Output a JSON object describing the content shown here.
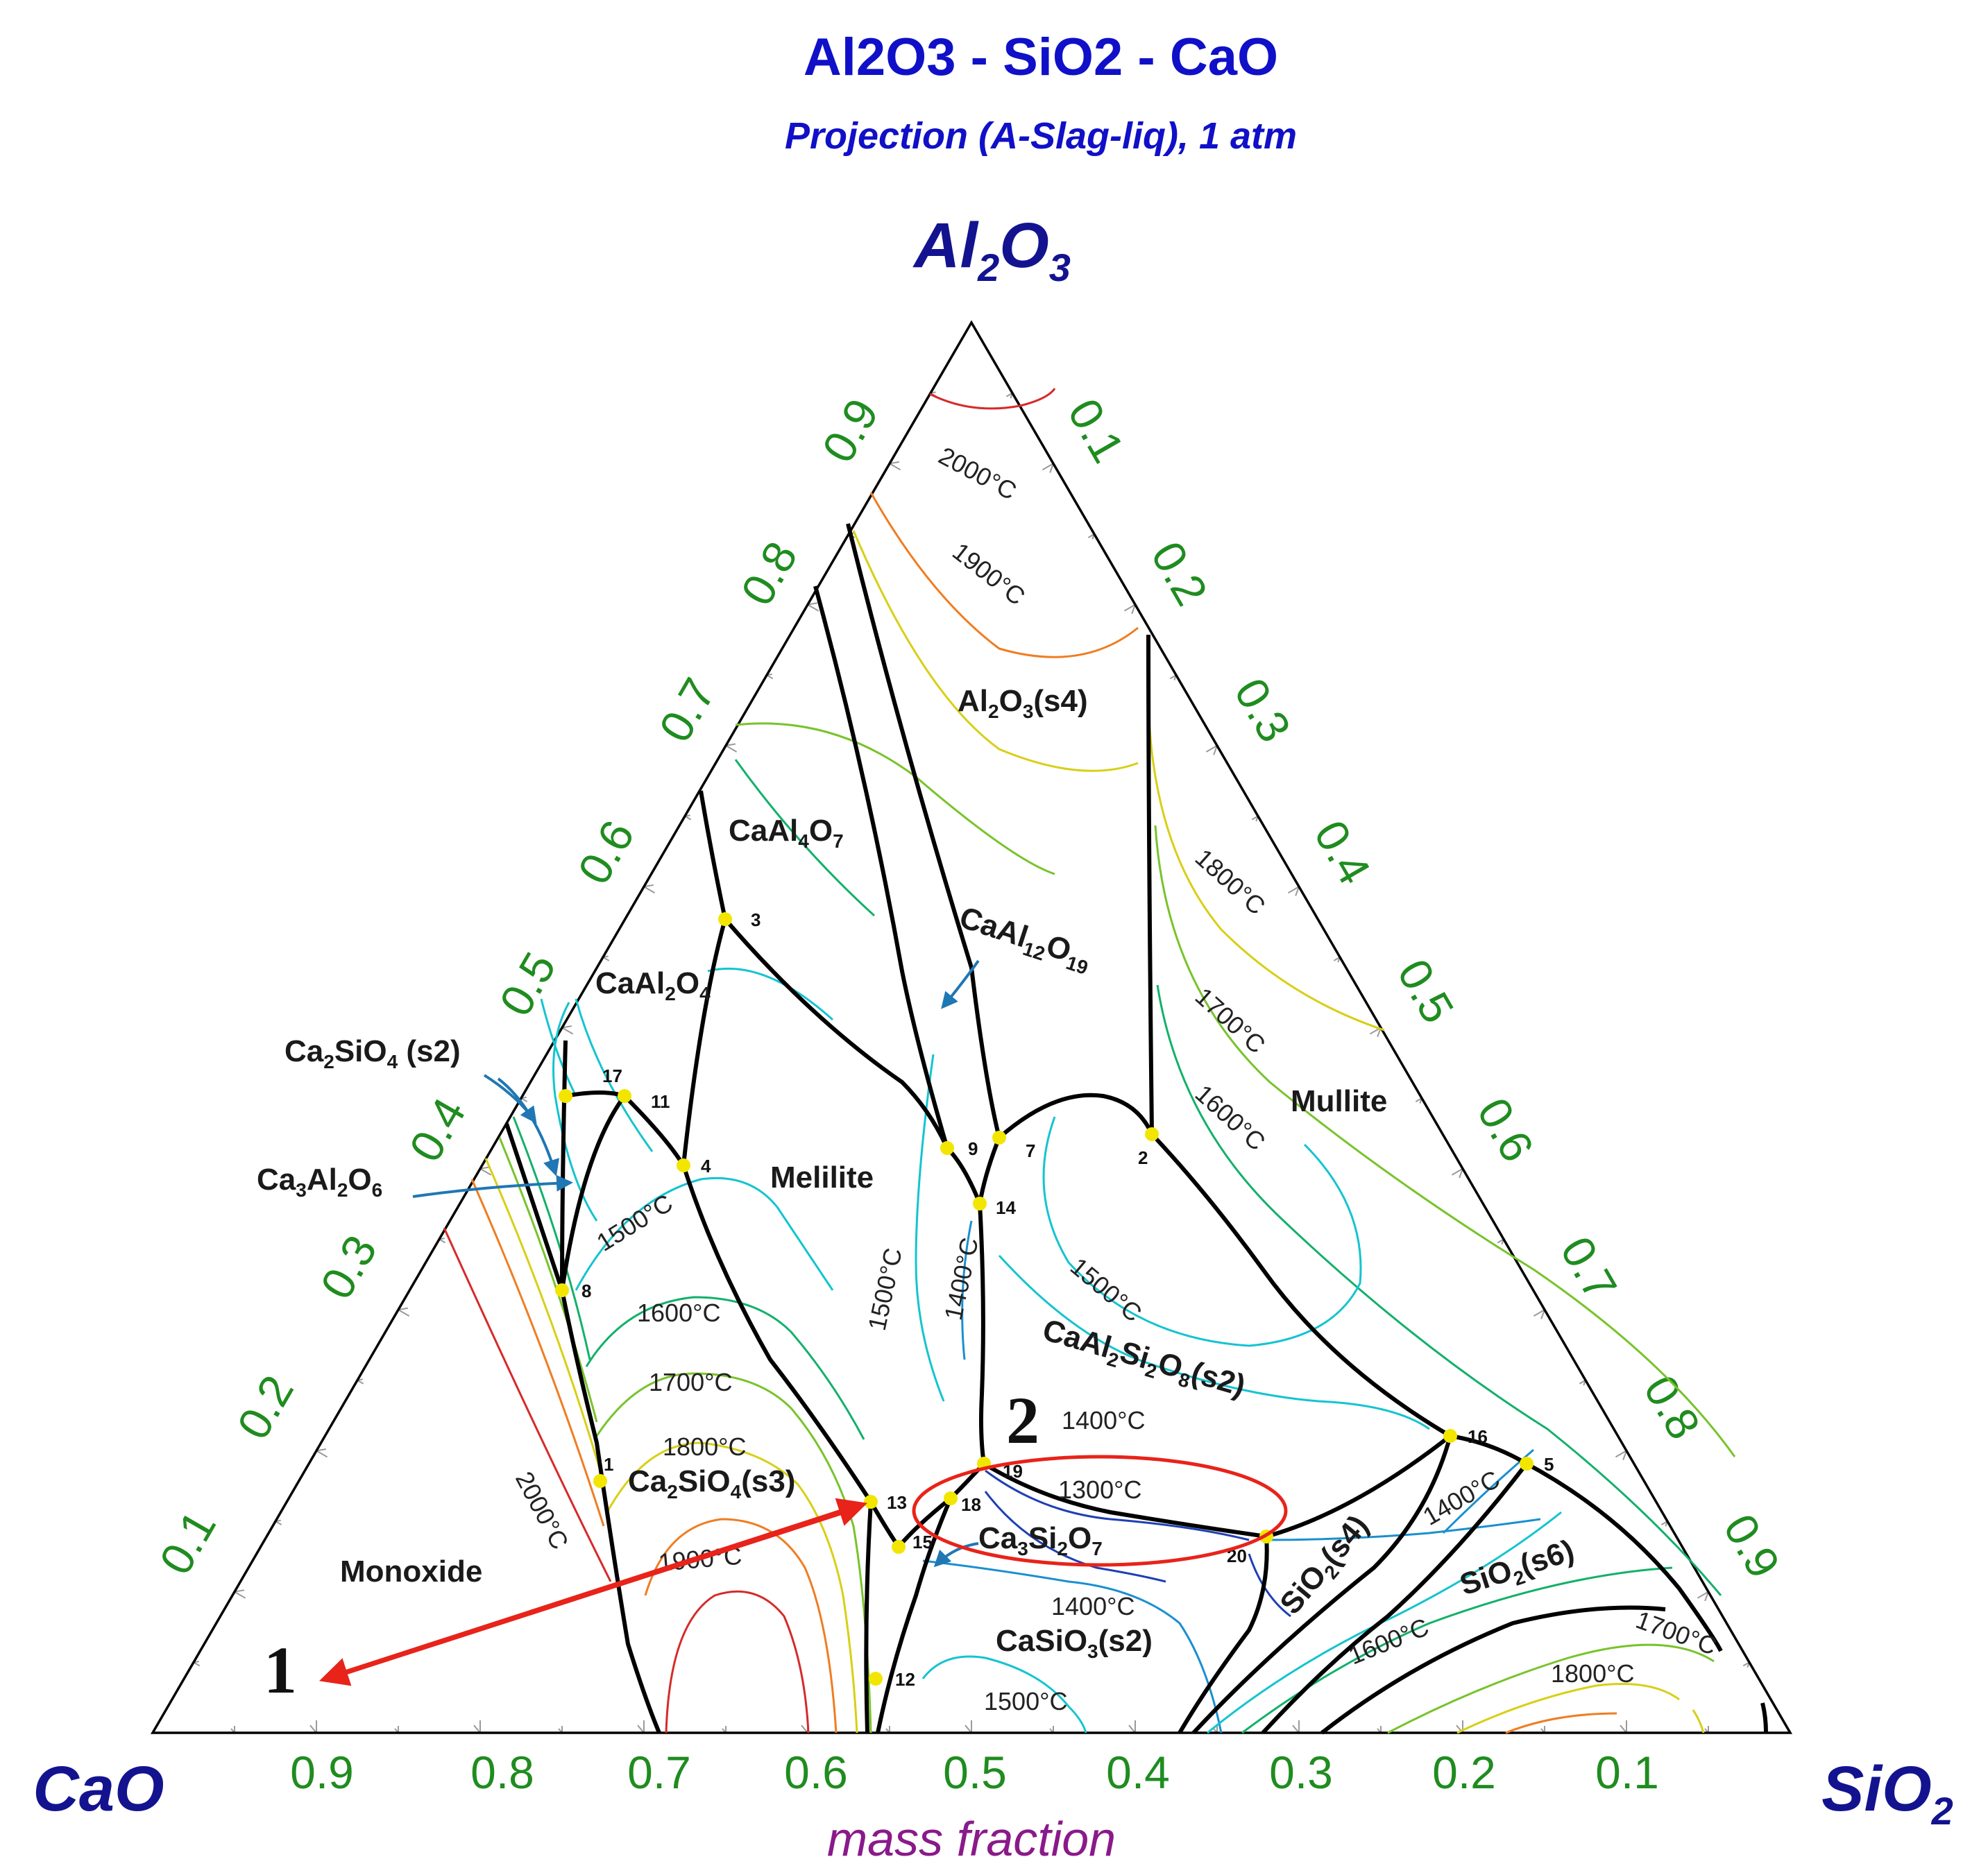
{
  "title": "Al2O3 - SiO2 - CaO",
  "subtitle": "Projection (A-Slag-liq), 1 atm",
  "vertices": {
    "top": {
      "main": "Al",
      "sub1": "2",
      "mid": "O",
      "sub2": "3"
    },
    "left": {
      "main": "CaO"
    },
    "right": {
      "main": "SiO",
      "sub1": "2"
    }
  },
  "axis_label": "mass fraction",
  "ticks": {
    "bottom": [
      "0.9",
      "0.8",
      "0.7",
      "0.6",
      "0.5",
      "0.4",
      "0.3",
      "0.2",
      "0.1"
    ],
    "left": [
      "0.1",
      "0.2",
      "0.3",
      "0.4",
      "0.5",
      "0.6",
      "0.7",
      "0.8",
      "0.9"
    ],
    "right": [
      "0.1",
      "0.2",
      "0.3",
      "0.4",
      "0.5",
      "0.6",
      "0.7",
      "0.8",
      "0.9"
    ]
  },
  "phases": [
    {
      "id": "al2o3",
      "parts": [
        "Al",
        "2",
        "O",
        "3",
        "(s4)"
      ]
    },
    {
      "id": "caal4o7",
      "parts": [
        "CaAl",
        "4",
        "O",
        "7",
        ""
      ]
    },
    {
      "id": "caal12o19",
      "parts": [
        "CaAl",
        "12",
        "O",
        "19",
        ""
      ]
    },
    {
      "id": "caal2o4",
      "parts": [
        "CaAl",
        "2",
        "O",
        "4",
        ""
      ]
    },
    {
      "id": "ca2sio4-s2",
      "parts": [
        "Ca",
        "2",
        "SiO",
        "4",
        " (s2)"
      ]
    },
    {
      "id": "ca3al2o6",
      "parts": [
        "Ca",
        "3",
        "Al",
        "2",
        "O",
        "6"
      ]
    },
    {
      "id": "melilite",
      "parts": [
        "Melilite"
      ]
    },
    {
      "id": "mullite",
      "parts": [
        "Mullite"
      ]
    },
    {
      "id": "caal2si2o8",
      "parts": [
        "CaAl",
        "2",
        "Si",
        "2",
        "O",
        "8",
        "(s2)"
      ]
    },
    {
      "id": "ca2sio4-s3",
      "parts": [
        "Ca",
        "2",
        "SiO",
        "4",
        "(s3)"
      ]
    },
    {
      "id": "ca3si2o7",
      "parts": [
        "Ca",
        "3",
        "Si",
        "2",
        "O",
        "7"
      ]
    },
    {
      "id": "monoxide",
      "parts": [
        "Monoxide"
      ]
    },
    {
      "id": "casio3",
      "parts": [
        "CaSiO",
        "3",
        "(s2)"
      ]
    },
    {
      "id": "sio2-s4",
      "parts": [
        "SiO",
        "2",
        "(s4)"
      ]
    },
    {
      "id": "sio2-s6",
      "parts": [
        "SiO",
        "2",
        "(s6)"
      ]
    }
  ],
  "isotherms": [
    {
      "id": "2000-top",
      "text": "2000°C"
    },
    {
      "id": "1900-top",
      "text": "1900°C"
    },
    {
      "id": "1800-right",
      "text": "1800°C"
    },
    {
      "id": "1700-right",
      "text": "1700°C"
    },
    {
      "id": "1600-right",
      "text": "1600°C"
    },
    {
      "id": "1500-left",
      "text": "1500°C"
    },
    {
      "id": "1600-left",
      "text": "1600°C"
    },
    {
      "id": "1700-left",
      "text": "1700°C"
    },
    {
      "id": "1800-left",
      "text": "1800°C"
    },
    {
      "id": "1900-bottom",
      "text": "1900°C"
    },
    {
      "id": "2000-bottom",
      "text": "2000°C"
    },
    {
      "id": "1500-mid",
      "text": "1500°C"
    },
    {
      "id": "1400-mid",
      "text": "1400°C"
    },
    {
      "id": "1500-anorthite",
      "text": "1500°C"
    },
    {
      "id": "1400-anorthite",
      "text": "1400°C"
    },
    {
      "id": "1300-center",
      "text": "1300°C"
    },
    {
      "id": "1400-casio3",
      "text": "1400°C"
    },
    {
      "id": "1500-casio3",
      "text": "1500°C"
    },
    {
      "id": "1400-silica",
      "text": "1400°C"
    },
    {
      "id": "1600-silica",
      "text": "1600°C"
    },
    {
      "id": "1700-silica",
      "text": "1700°C"
    },
    {
      "id": "1800-silica",
      "text": "1800°C"
    }
  ],
  "points": [
    "1",
    "2",
    "3",
    "4",
    "5",
    "7",
    "8",
    "9",
    "11",
    "12",
    "13",
    "14",
    "15",
    "16",
    "17",
    "18",
    "19",
    "20"
  ],
  "markers": {
    "one": "1",
    "two": "2"
  },
  "colors": {
    "title": "#1010c8",
    "vertex": "#131390",
    "tick": "#1f8c1f",
    "boundary": "#000000",
    "point": "#f2e600",
    "arrow": "#1f77b4",
    "highlight": "#e8231a",
    "axis_label": "#8a1a8a",
    "iso_2000": "#d62a2a",
    "iso_1900": "#ef7d22",
    "iso_1800": "#d8cf16",
    "iso_1700": "#78c32b",
    "iso_1600": "#13b06a",
    "iso_1500": "#14c4cf",
    "iso_1400": "#1a8fd0",
    "iso_1300": "#1f3fb5"
  }
}
